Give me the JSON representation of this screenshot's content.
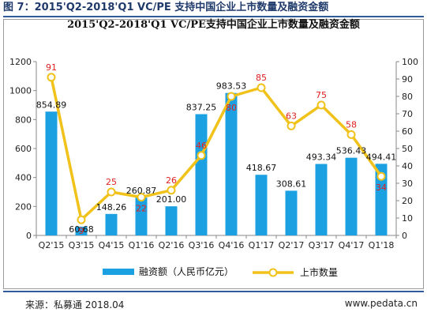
{
  "figure_caption": "图 7：2015'Q2-2018'Q1 VC/PE 支持中国企业上市数量及融资金额",
  "source": "来源：私募通  2018.04",
  "website": "www.pedata.cn",
  "colors": {
    "bar": "#1ba1e2",
    "line": "#f0c21a",
    "line_label": "#e02020"
  },
  "chart_data": {
    "type": "bar",
    "title": "2015'Q2-2018'Q1 VC/PE支持中国企业上市数量及融资金额",
    "categories": [
      "Q2'15",
      "Q3'15",
      "Q4'15",
      "Q1'16",
      "Q2'16",
      "Q3'16",
      "Q4'16",
      "Q1'17",
      "Q2'17",
      "Q3'17",
      "Q4'17",
      "Q1'18"
    ],
    "series": [
      {
        "name": "融资额（人民币亿元）",
        "type": "bar",
        "axis": "left",
        "values": [
          854.89,
          60.68,
          148.26,
          260.87,
          201.0,
          837.25,
          983.53,
          418.67,
          308.61,
          493.34,
          536.43,
          494.41
        ],
        "labels": [
          "854.89",
          "60.68",
          "148.26",
          "260.87",
          "201.00",
          "837.25",
          "983.53",
          "418.67",
          "308.61",
          "493.34",
          "536.43",
          "494.41"
        ]
      },
      {
        "name": "上市数量",
        "type": "line",
        "axis": "right",
        "values": [
          91,
          9,
          25,
          22,
          26,
          46,
          80,
          85,
          63,
          75,
          58,
          34
        ],
        "labels": [
          "91",
          "9",
          "25",
          "22",
          "26",
          "46",
          "80",
          "85",
          "63",
          "75",
          "58",
          "34"
        ]
      }
    ],
    "y_left": {
      "min": 0,
      "max": 1200,
      "ticks": [
        "0",
        "200",
        "400",
        "600",
        "800",
        "1000",
        "1200"
      ]
    },
    "y_right": {
      "min": 0,
      "max": 100,
      "ticks": [
        "0",
        "10",
        "20",
        "30",
        "40",
        "50",
        "60",
        "70",
        "80",
        "90",
        "100"
      ]
    },
    "grid": false,
    "legend_position": "bottom"
  }
}
